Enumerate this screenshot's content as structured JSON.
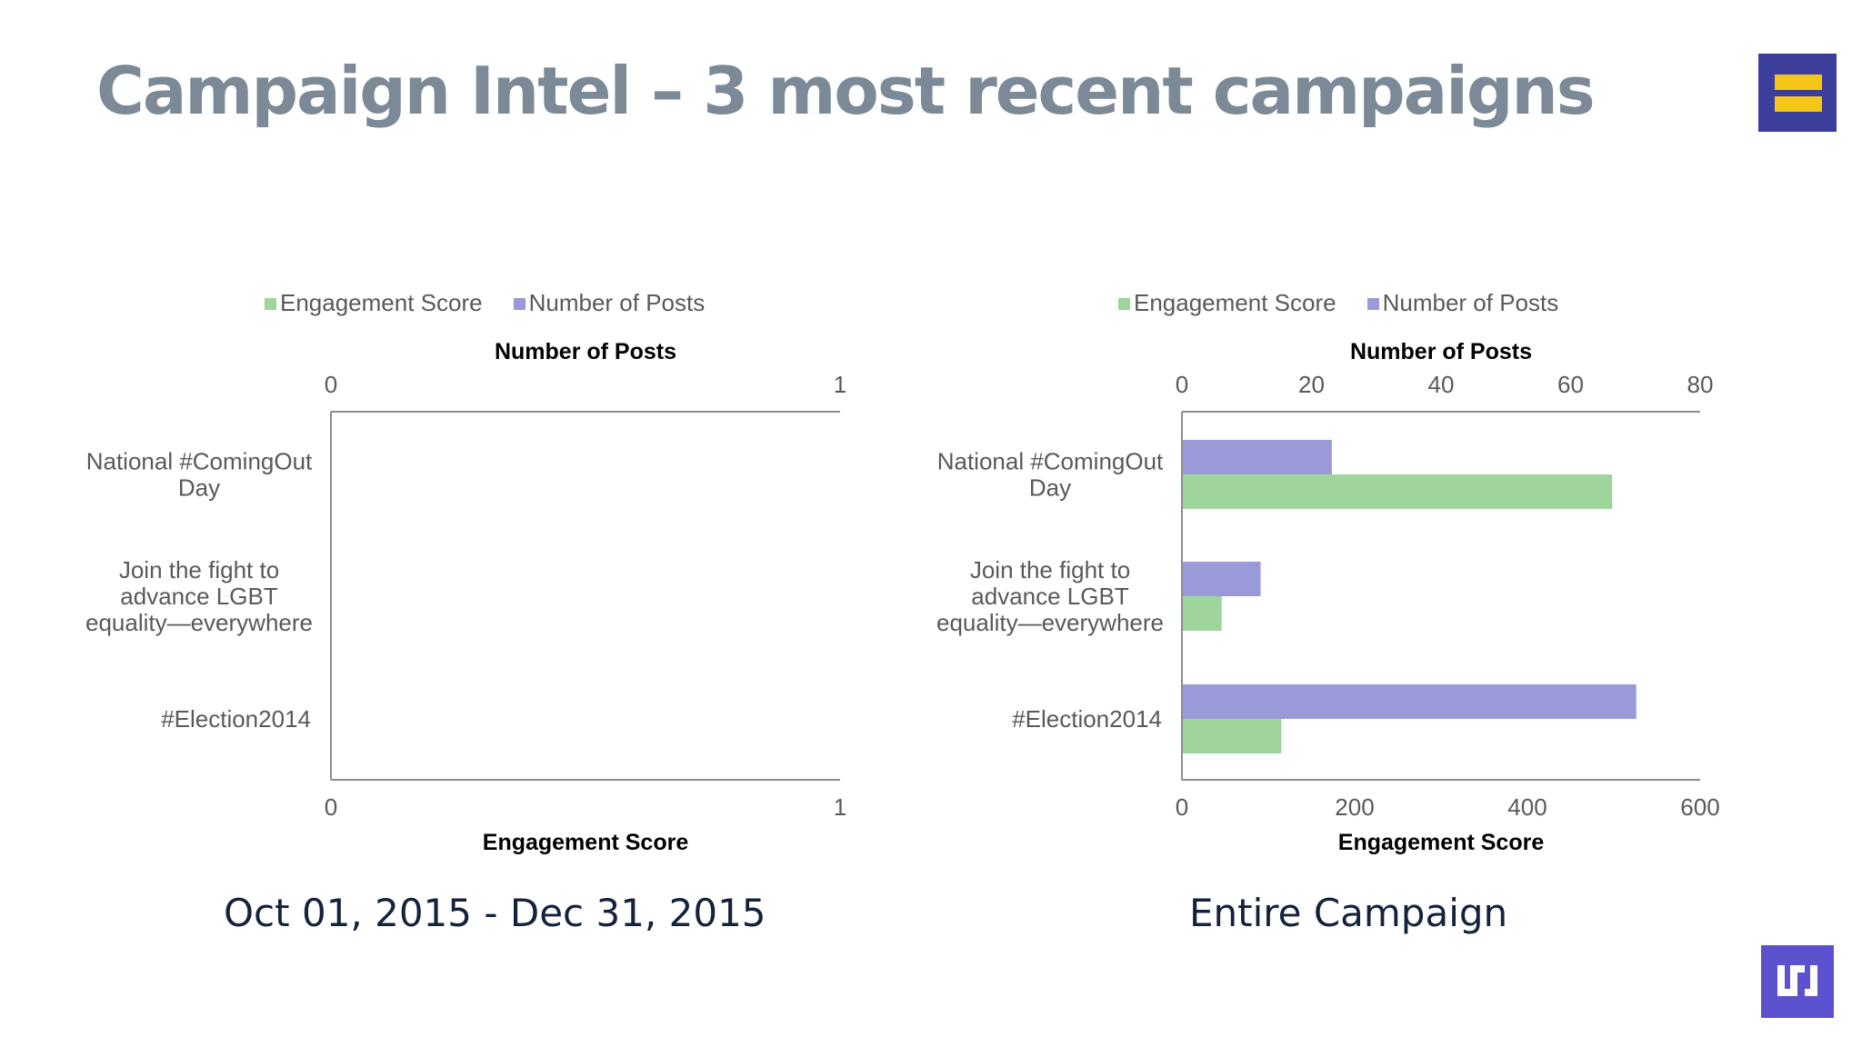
{
  "title": "Campaign Intel – 3 most recent campaigns",
  "legend": {
    "engagement": "Engagement Score",
    "posts": "Number of Posts"
  },
  "colors": {
    "engagement": "#9dd59a",
    "posts": "#9a9ad8",
    "title": "#7b8a96",
    "logo_bg": "#3b3f9b",
    "logo_bar": "#f5c518",
    "logo2_bg": "#5c52cf"
  },
  "icons": {
    "top_logo": "equality-logo-icon",
    "bottom_logo": "brand-logo-icon"
  },
  "chart_data": [
    {
      "type": "bar",
      "orientation": "horizontal",
      "categories": [
        "National #ComingOut Day",
        "Join the fight to advance LGBT equality—everywhere",
        "#Election2014"
      ],
      "series": [
        {
          "name": "Engagement Score",
          "values": [
            0,
            0,
            0
          ],
          "axis": "bottom"
        },
        {
          "name": "Number of Posts",
          "values": [
            0,
            0,
            0
          ],
          "axis": "top"
        }
      ],
      "top_axis": {
        "label": "Number of Posts",
        "ticks": [
          0,
          1
        ],
        "range": [
          0,
          1
        ]
      },
      "bottom_axis": {
        "label": "Engagement Score",
        "ticks": [
          0,
          1
        ],
        "range": [
          0,
          1
        ]
      },
      "caption": "Oct 01, 2015 - Dec 31, 2015",
      "legend_position": "top"
    },
    {
      "type": "bar",
      "orientation": "horizontal",
      "categories": [
        "National #ComingOut Day",
        "Join the fight to advance LGBT equality—everywhere",
        "#Election2014"
      ],
      "series": [
        {
          "name": "Engagement Score",
          "values": [
            497,
            45,
            114
          ],
          "axis": "bottom"
        },
        {
          "name": "Number of Posts",
          "values": [
            23,
            12,
            70
          ],
          "axis": "top"
        }
      ],
      "top_axis": {
        "label": "Number of Posts",
        "ticks": [
          0,
          20,
          40,
          60,
          80
        ],
        "range": [
          0,
          80
        ]
      },
      "bottom_axis": {
        "label": "Engagement Score",
        "ticks": [
          0,
          200,
          400,
          600
        ],
        "range": [
          0,
          600
        ]
      },
      "caption": "Entire Campaign",
      "legend_position": "top"
    }
  ]
}
